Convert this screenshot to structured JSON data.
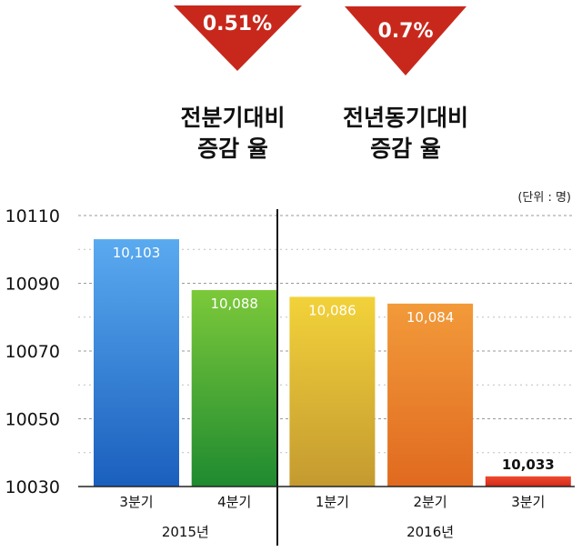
{
  "headline": {
    "badges": [
      {
        "value": "0.51%",
        "caption_line1": "전분기대비",
        "caption_line2": "증감 율"
      },
      {
        "value": "0.7%",
        "caption_line1": "전년동기대비",
        "caption_line2": "증감 율"
      }
    ],
    "badge_color": "#c8281c"
  },
  "chart_data": {
    "type": "bar",
    "unit_note": "(단위 : 명)",
    "title": "",
    "xlabel": "",
    "ylabel": "",
    "ylim": [
      10030,
      10110
    ],
    "yticks": [
      10110,
      10090,
      10070,
      10050,
      10030
    ],
    "grid": true,
    "categories": [
      "3분기",
      "4분기",
      "1분기",
      "2분기",
      "3분기"
    ],
    "values": [
      10103,
      10088,
      10086,
      10084,
      10033
    ],
    "data_labels": [
      "10,103",
      "10,088",
      "10,086",
      "10,084",
      "10,033"
    ],
    "bar_colors": [
      [
        "#5aaaf0",
        "#1a5fbd"
      ],
      [
        "#7cc93a",
        "#1f8a30"
      ],
      [
        "#f2d23a",
        "#c49a30"
      ],
      [
        "#f29a3a",
        "#e06a20"
      ],
      [
        "#f04a30",
        "#d02818"
      ]
    ],
    "year_groups": [
      {
        "label": "2015년",
        "from": 0,
        "to": 1
      },
      {
        "label": "2016년",
        "from": 2,
        "to": 4
      }
    ]
  }
}
